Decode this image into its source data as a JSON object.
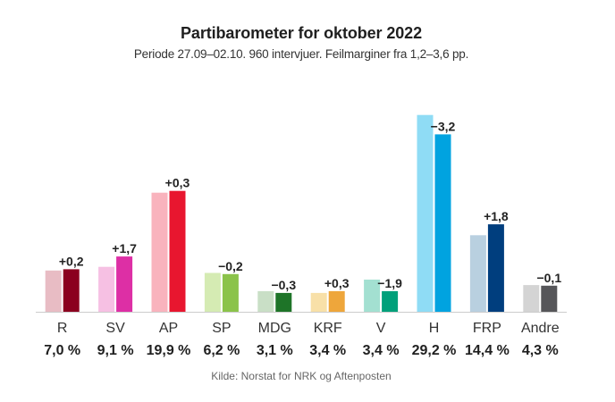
{
  "title": "Partibarometer for oktober 2022",
  "subtitle": "Periode 27.09–02.10. 960 intervjuer. Feilmarginer fra 1,2–3,6 pp.",
  "source": "Kilde: Norstat for NRK og Aftenposten",
  "chart_data": {
    "type": "bar",
    "title": "Partibarometer for oktober 2022",
    "subtitle": "Periode 27.09–02.10. 960 intervjuer. Feilmarginer fra 1,2–3,6 pp.",
    "xlabel": "",
    "ylabel": "",
    "ylim": [
      0,
      33
    ],
    "grid": false,
    "categories": [
      "R",
      "SV",
      "AP",
      "SP",
      "MDG",
      "KRF",
      "V",
      "H",
      "FRP",
      "Andre"
    ],
    "current_values": [
      7.0,
      9.1,
      19.9,
      6.2,
      3.1,
      3.4,
      3.4,
      29.2,
      14.4,
      4.3
    ],
    "previous_values": [
      6.8,
      7.4,
      19.6,
      6.4,
      3.4,
      3.1,
      5.3,
      32.4,
      12.6,
      4.4
    ],
    "changes": [
      0.2,
      1.7,
      0.3,
      -0.2,
      -0.3,
      0.3,
      -1.9,
      -3.2,
      1.8,
      -0.1
    ],
    "current_labels": [
      "7,0 %",
      "9,1 %",
      "19,9 %",
      "6,2 %",
      "3,1 %",
      "3,4 %",
      "3,4 %",
      "29,2 %",
      "14,4 %",
      "4,3 %"
    ],
    "change_labels": [
      "+0,2",
      "+1,7",
      "+0,3",
      "−0,2",
      "−0,3",
      "+0,3",
      "−1,9",
      "−3,2",
      "+1,8",
      "−0,1"
    ],
    "current_colors": [
      "#8b001f",
      "#dd2fa5",
      "#e8162f",
      "#8bc34a",
      "#1e7428",
      "#eea63b",
      "#00a07a",
      "#00a3e0",
      "#003e7e",
      "#565659"
    ],
    "previous_colors": [
      "#e8bcc4",
      "#f6c0e3",
      "#f9b3bd",
      "#d5ebb3",
      "#c9dfc6",
      "#f8e0a8",
      "#a3e0d1",
      "#8fdcf5",
      "#b9d0e0",
      "#d4d4d4"
    ],
    "axis_color": "#cccccc"
  }
}
